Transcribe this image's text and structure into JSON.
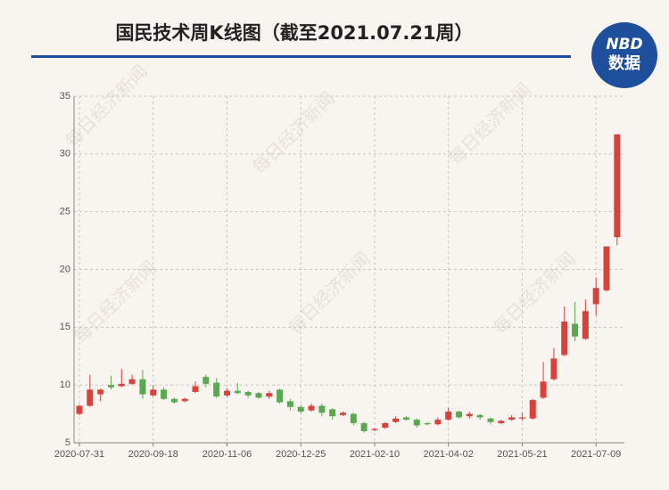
{
  "chart_data": {
    "type": "candlestick",
    "title": "国民技术周K线图（截至2021.07.21周）",
    "logo": {
      "brand": "NBD",
      "label": "数据"
    },
    "watermark": "每日经济新闻",
    "up_color": "#d9413c",
    "down_color": "#5aa951",
    "grid": true,
    "ylim": [
      5,
      35
    ],
    "yticks": [
      5,
      10,
      15,
      20,
      25,
      30,
      35
    ],
    "categories": [
      "2020-07-31",
      null,
      null,
      null,
      null,
      null,
      null,
      "2020-09-18",
      null,
      null,
      null,
      null,
      null,
      null,
      "2020-11-06",
      null,
      null,
      null,
      null,
      null,
      null,
      "2020-12-25",
      null,
      null,
      null,
      null,
      null,
      null,
      "2021-02-10",
      null,
      null,
      null,
      null,
      null,
      null,
      "2021-04-02",
      null,
      null,
      null,
      null,
      null,
      null,
      "2021-05-21",
      null,
      null,
      null,
      null,
      null,
      null,
      "2021-07-09",
      null,
      null
    ],
    "open": [
      7.5,
      8.2,
      9.2,
      10.0,
      9.9,
      10.1,
      10.5,
      9.1,
      9.6,
      8.8,
      8.6,
      9.4,
      10.7,
      10.2,
      9.1,
      9.5,
      9.4,
      9.3,
      9.0,
      9.6,
      8.6,
      8.1,
      7.8,
      8.2,
      7.9,
      7.4,
      7.5,
      6.7,
      6.1,
      6.3,
      6.8,
      7.2,
      7.0,
      6.7,
      6.6,
      7.0,
      7.7,
      7.3,
      7.4,
      7.1,
      6.7,
      7.0,
      7.1,
      7.1,
      8.9,
      10.5,
      12.6,
      15.3,
      14.0,
      17.0,
      18.2,
      22.8
    ],
    "high": [
      8.3,
      10.9,
      9.7,
      10.8,
      11.4,
      10.9,
      11.3,
      10.0,
      9.8,
      8.9,
      8.9,
      10.3,
      10.9,
      10.6,
      9.7,
      10.2,
      9.5,
      9.4,
      9.5,
      9.7,
      8.8,
      8.3,
      8.4,
      8.4,
      8.0,
      7.7,
      7.6,
      6.8,
      6.3,
      6.8,
      7.3,
      7.3,
      7.1,
      6.8,
      7.2,
      8.0,
      7.8,
      7.7,
      7.5,
      7.2,
      7.0,
      7.4,
      7.6,
      8.8,
      12.0,
      13.2,
      16.8,
      17.2,
      17.4,
      19.3,
      22.0,
      31.7
    ],
    "low": [
      7.4,
      8.1,
      8.6,
      9.6,
      9.8,
      10.0,
      8.8,
      9.0,
      8.7,
      8.4,
      8.5,
      9.3,
      9.8,
      8.9,
      9.0,
      9.2,
      8.9,
      8.8,
      8.8,
      8.4,
      7.8,
      7.5,
      7.7,
      7.3,
      7.0,
      7.3,
      6.5,
      5.9,
      6.0,
      6.2,
      6.7,
      6.9,
      6.3,
      6.5,
      6.5,
      6.9,
      7.1,
      7.1,
      7.0,
      6.6,
      6.6,
      6.9,
      6.9,
      7.0,
      8.8,
      10.4,
      12.5,
      13.8,
      13.9,
      16.0,
      18.1,
      22.1
    ],
    "close": [
      8.2,
      9.6,
      9.6,
      9.8,
      10.1,
      10.5,
      9.2,
      9.6,
      8.8,
      8.5,
      8.8,
      9.9,
      10.1,
      9.0,
      9.5,
      9.3,
      9.1,
      8.9,
      9.3,
      8.5,
      8.1,
      7.7,
      8.2,
      7.6,
      7.3,
      7.6,
      6.7,
      6.0,
      6.2,
      6.7,
      7.1,
      7.0,
      6.5,
      6.6,
      7.0,
      7.7,
      7.2,
      7.5,
      7.2,
      6.8,
      6.9,
      7.2,
      7.2,
      8.7,
      10.3,
      12.3,
      15.5,
      14.2,
      16.4,
      18.4,
      22.0,
      31.7
    ]
  }
}
